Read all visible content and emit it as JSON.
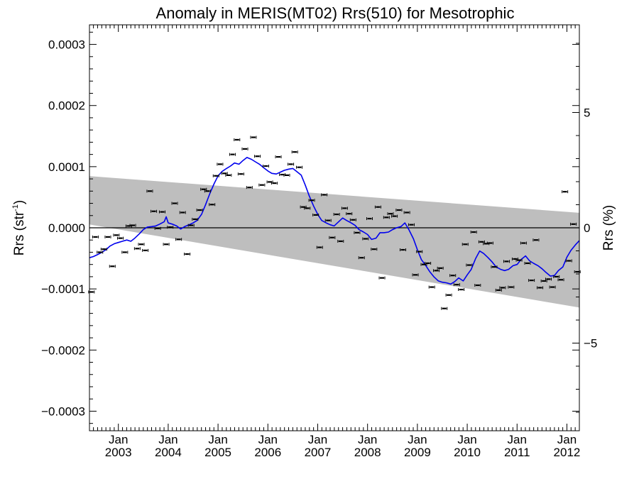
{
  "chart_data": {
    "type": "scatter",
    "title": "Anomaly in MERIS(MT02) Rrs(510) for Mesotrophic",
    "ylabel_main": "Rrs (str",
    "ylabel_sup": "-1",
    "ylabel_close": ")",
    "y2label": "Rrs (%)",
    "xlim": [
      2002.42,
      2012.25
    ],
    "ylim": [
      -0.000332,
      0.000332
    ],
    "y2lim": [
      -8.8,
      8.8
    ],
    "y_ticks": [
      {
        "value": 0.0003,
        "label": "0.0003"
      },
      {
        "value": 0.0002,
        "label": "0.0002"
      },
      {
        "value": 0.0001,
        "label": "0.0001"
      },
      {
        "value": 0.0,
        "label": "0.0000"
      },
      {
        "value": -0.0001,
        "label": "−0.0001"
      },
      {
        "value": -0.0002,
        "label": "−0.0002"
      },
      {
        "value": -0.0003,
        "label": "−0.0003"
      }
    ],
    "y2_ticks": [
      {
        "value": 5,
        "label": "5"
      },
      {
        "value": 0,
        "label": "0"
      },
      {
        "value": -5,
        "label": "−5"
      }
    ],
    "x_ticks": [
      {
        "value": 2003.0,
        "month": "Jan",
        "year": "2003"
      },
      {
        "value": 2004.0,
        "month": "Jan",
        "year": "2004"
      },
      {
        "value": 2005.0,
        "month": "Jan",
        "year": "2005"
      },
      {
        "value": 2006.0,
        "month": "Jan",
        "year": "2006"
      },
      {
        "value": 2007.0,
        "month": "Jan",
        "year": "2007"
      },
      {
        "value": 2008.0,
        "month": "Jan",
        "year": "2008"
      },
      {
        "value": 2009.0,
        "month": "Jan",
        "year": "2009"
      },
      {
        "value": 2010.0,
        "month": "Jan",
        "year": "2010"
      },
      {
        "value": 2011.0,
        "month": "Jan",
        "year": "2011"
      },
      {
        "value": 2012.0,
        "month": "Jan",
        "year": "2012"
      }
    ],
    "shaded_band": {
      "upper": [
        [
          2002.42,
          8.45e-05
        ],
        [
          2012.25,
          2.45e-05
        ]
      ],
      "lower": [
        [
          2002.42,
          5.5e-06
        ],
        [
          2012.25,
          -0.0001305
        ]
      ]
    },
    "zero_line": 0,
    "monthly_points": [
      [
        2002.46,
        -0.000105
      ],
      [
        2002.54,
        -1.5e-05
      ],
      [
        2002.63,
        -4e-05
      ],
      [
        2002.71,
        -3.5e-05
      ],
      [
        2002.79,
        -1.5e-05
      ],
      [
        2002.88,
        -6.3e-05
      ],
      [
        2002.96,
        -1.2e-05
      ],
      [
        2003.04,
        -1.7e-05
      ],
      [
        2003.13,
        -4e-05
      ],
      [
        2003.21,
        3e-06
      ],
      [
        2003.29,
        4e-06
      ],
      [
        2003.38,
        -3.4e-05
      ],
      [
        2003.46,
        -2.7e-05
      ],
      [
        2003.54,
        -3.7e-05
      ],
      [
        2003.63,
        6e-05
      ],
      [
        2003.71,
        2.7e-05
      ],
      [
        2003.79,
        -1e-06
      ],
      [
        2003.88,
        2.6e-05
      ],
      [
        2003.96,
        -2.7e-05
      ],
      [
        2004.04,
        1e-06
      ],
      [
        2004.13,
        4e-05
      ],
      [
        2004.21,
        -1.9e-05
      ],
      [
        2004.29,
        2.5e-05
      ],
      [
        2004.38,
        -4.3e-05
      ],
      [
        2004.46,
        4e-06
      ],
      [
        2004.54,
        1.4e-05
      ],
      [
        2004.63,
        2.9e-05
      ],
      [
        2004.71,
        6.3e-05
      ],
      [
        2004.79,
        6e-05
      ],
      [
        2004.88,
        3.8e-05
      ],
      [
        2004.96,
        8.5e-05
      ],
      [
        2005.04,
        0.000104
      ],
      [
        2005.13,
        8.9e-05
      ],
      [
        2005.21,
        8.6e-05
      ],
      [
        2005.29,
        0.00012
      ],
      [
        2005.38,
        0.000144
      ],
      [
        2005.46,
        8.8e-05
      ],
      [
        2005.54,
        0.000129
      ],
      [
        2005.63,
        6.6e-05
      ],
      [
        2005.71,
        0.000148
      ],
      [
        2005.79,
        0.000117
      ],
      [
        2005.88,
        7e-05
      ],
      [
        2005.96,
        0.000101
      ],
      [
        2006.04,
        7.5e-05
      ],
      [
        2006.13,
        7.3e-05
      ],
      [
        2006.21,
        0.000116
      ],
      [
        2006.29,
        8.7e-05
      ],
      [
        2006.38,
        8.6e-05
      ],
      [
        2006.46,
        0.000104
      ],
      [
        2006.54,
        0.000124
      ],
      [
        2006.63,
        9.9e-05
      ],
      [
        2006.71,
        3.4e-05
      ],
      [
        2006.79,
        3.2e-05
      ],
      [
        2006.88,
        4.5e-05
      ],
      [
        2006.96,
        2.1e-05
      ],
      [
        2007.04,
        -3.2e-05
      ],
      [
        2007.13,
        5.4e-05
      ],
      [
        2007.21,
        1.2e-05
      ],
      [
        2007.29,
        -1.6e-05
      ],
      [
        2007.38,
        2.2e-05
      ],
      [
        2007.46,
        -2.2e-05
      ],
      [
        2007.54,
        3.2e-05
      ],
      [
        2007.63,
        2.3e-05
      ],
      [
        2007.71,
        1.3e-05
      ],
      [
        2007.79,
        -8e-06
      ],
      [
        2007.88,
        -4.9e-05
      ],
      [
        2007.96,
        -1.8e-05
      ],
      [
        2008.04,
        1.5e-05
      ],
      [
        2008.13,
        -3.5e-05
      ],
      [
        2008.21,
        3.4e-05
      ],
      [
        2008.29,
        -8.2e-05
      ],
      [
        2008.38,
        1.7e-05
      ],
      [
        2008.46,
        2.3e-05
      ],
      [
        2008.54,
        1.9e-05
      ],
      [
        2008.63,
        2.9e-05
      ],
      [
        2008.71,
        -3.6e-05
      ],
      [
        2008.79,
        2.5e-05
      ],
      [
        2008.88,
        5e-06
      ],
      [
        2008.96,
        -7.7e-05
      ],
      [
        2009.04,
        -3.9e-05
      ],
      [
        2009.13,
        -6e-05
      ],
      [
        2009.21,
        -5.8e-05
      ],
      [
        2009.29,
        -9.7e-05
      ],
      [
        2009.38,
        -7e-05
      ],
      [
        2009.46,
        -6.6e-05
      ],
      [
        2009.54,
        -0.000132
      ],
      [
        2009.63,
        -0.00011
      ],
      [
        2009.71,
        -7.8e-05
      ],
      [
        2009.79,
        -9.3e-05
      ],
      [
        2009.88,
        -0.000101
      ],
      [
        2009.96,
        -2.7e-05
      ],
      [
        2010.04,
        -6.1e-05
      ],
      [
        2010.13,
        -7e-06
      ],
      [
        2010.21,
        -9.4e-05
      ],
      [
        2010.29,
        -2.3e-05
      ],
      [
        2010.38,
        -2.6e-05
      ],
      [
        2010.46,
        -2.5e-05
      ],
      [
        2010.54,
        -6.4e-05
      ],
      [
        2010.63,
        -0.000102
      ],
      [
        2010.71,
        -9.8e-05
      ],
      [
        2010.79,
        -5.5e-05
      ],
      [
        2010.88,
        -9.7e-05
      ],
      [
        2010.96,
        -5.1e-05
      ],
      [
        2011.04,
        -5.3e-05
      ],
      [
        2011.13,
        -2.5e-05
      ],
      [
        2011.21,
        -5.8e-05
      ],
      [
        2011.29,
        -8.6e-05
      ],
      [
        2011.38,
        -2e-05
      ],
      [
        2011.46,
        -9.8e-05
      ],
      [
        2011.54,
        -8.7e-05
      ],
      [
        2011.63,
        -8.4e-05
      ],
      [
        2011.71,
        -9.7e-05
      ],
      [
        2011.79,
        -8e-05
      ],
      [
        2011.88,
        -8.5e-05
      ],
      [
        2011.96,
        5.9e-05
      ],
      [
        2012.04,
        -5.4e-05
      ],
      [
        2012.13,
        6e-06
      ],
      [
        2012.21,
        -7.2e-05
      ]
    ],
    "running_mean": [
      [
        2002.42,
        -4.9e-05
      ],
      [
        2002.5,
        -4.7e-05
      ],
      [
        2002.58,
        -4.4e-05
      ],
      [
        2002.67,
        -4e-05
      ],
      [
        2002.75,
        -3.6e-05
      ],
      [
        2002.83,
        -3e-05
      ],
      [
        2002.92,
        -2.6e-05
      ],
      [
        2003.0,
        -2.4e-05
      ],
      [
        2003.08,
        -2.2e-05
      ],
      [
        2003.17,
        -2e-05
      ],
      [
        2003.25,
        -2.2e-05
      ],
      [
        2003.33,
        -1.7e-05
      ],
      [
        2003.42,
        -1e-05
      ],
      [
        2003.5,
        -3e-06
      ],
      [
        2003.58,
        1e-06
      ],
      [
        2003.67,
        2e-06
      ],
      [
        2003.75,
        3e-06
      ],
      [
        2003.83,
        6e-06
      ],
      [
        2003.92,
        1e-05
      ],
      [
        2003.96,
        1.8e-05
      ],
      [
        2004.0,
        8e-06
      ],
      [
        2004.08,
        6e-06
      ],
      [
        2004.17,
        3e-06
      ],
      [
        2004.25,
        -2e-06
      ],
      [
        2004.33,
        2e-06
      ],
      [
        2004.42,
        5e-06
      ],
      [
        2004.5,
        8e-06
      ],
      [
        2004.58,
        1.2e-05
      ],
      [
        2004.67,
        2.2e-05
      ],
      [
        2004.75,
        3.8e-05
      ],
      [
        2004.83,
        5.5e-05
      ],
      [
        2004.92,
        7.2e-05
      ],
      [
        2005.0,
        8.5e-05
      ],
      [
        2005.08,
        9.2e-05
      ],
      [
        2005.17,
        9.7e-05
      ],
      [
        2005.25,
        0.000101
      ],
      [
        2005.33,
        0.000106
      ],
      [
        2005.42,
        0.000104
      ],
      [
        2005.5,
        0.00011
      ],
      [
        2005.58,
        0.000115
      ],
      [
        2005.67,
        0.000112
      ],
      [
        2005.75,
        0.000108
      ],
      [
        2005.83,
        0.000104
      ],
      [
        2005.92,
        9.8e-05
      ],
      [
        2006.0,
        9.3e-05
      ],
      [
        2006.08,
        8.9e-05
      ],
      [
        2006.17,
        8.8e-05
      ],
      [
        2006.25,
        9.1e-05
      ],
      [
        2006.33,
        9.4e-05
      ],
      [
        2006.42,
        9.6e-05
      ],
      [
        2006.5,
        9.7e-05
      ],
      [
        2006.58,
        9.2e-05
      ],
      [
        2006.67,
        8.6e-05
      ],
      [
        2006.75,
        7e-05
      ],
      [
        2006.83,
        5.2e-05
      ],
      [
        2006.92,
        3.5e-05
      ],
      [
        2007.0,
        2.2e-05
      ],
      [
        2007.08,
        1.2e-05
      ],
      [
        2007.17,
        8e-06
      ],
      [
        2007.25,
        5e-06
      ],
      [
        2007.33,
        3e-06
      ],
      [
        2007.42,
        1e-05
      ],
      [
        2007.5,
        1.6e-05
      ],
      [
        2007.58,
        1.2e-05
      ],
      [
        2007.67,
        8e-06
      ],
      [
        2007.75,
        4e-06
      ],
      [
        2007.83,
        -3e-06
      ],
      [
        2007.92,
        -7e-06
      ],
      [
        2008.0,
        -1.1e-05
      ],
      [
        2008.08,
        -1.9e-05
      ],
      [
        2008.17,
        -1.7e-05
      ],
      [
        2008.25,
        -8e-06
      ],
      [
        2008.33,
        -8e-06
      ],
      [
        2008.42,
        -7e-06
      ],
      [
        2008.5,
        -3e-06
      ],
      [
        2008.58,
        0.0
      ],
      [
        2008.67,
        2e-06
      ],
      [
        2008.75,
        8e-06
      ],
      [
        2008.83,
        -3e-06
      ],
      [
        2008.92,
        -1.8e-05
      ],
      [
        2009.0,
        -3.6e-05
      ],
      [
        2009.08,
        -5.2e-05
      ],
      [
        2009.17,
        -6.2e-05
      ],
      [
        2009.25,
        -7.2e-05
      ],
      [
        2009.33,
        -8e-05
      ],
      [
        2009.42,
        -8.7e-05
      ],
      [
        2009.5,
        -8.9e-05
      ],
      [
        2009.58,
        -9e-05
      ],
      [
        2009.67,
        -9.2e-05
      ],
      [
        2009.75,
        -8.8e-05
      ],
      [
        2009.83,
        -8.2e-05
      ],
      [
        2009.92,
        -8.7e-05
      ],
      [
        2010.0,
        -7.7e-05
      ],
      [
        2010.08,
        -6.8e-05
      ],
      [
        2010.17,
        -5e-05
      ],
      [
        2010.25,
        -3.8e-05
      ],
      [
        2010.33,
        -4.2e-05
      ],
      [
        2010.42,
        -4.9e-05
      ],
      [
        2010.5,
        -5.6e-05
      ],
      [
        2010.58,
        -6.4e-05
      ],
      [
        2010.67,
        -6.8e-05
      ],
      [
        2010.75,
        -7e-05
      ],
      [
        2010.83,
        -6.8e-05
      ],
      [
        2010.92,
        -6.2e-05
      ],
      [
        2011.0,
        -6e-05
      ],
      [
        2011.08,
        -5.2e-05
      ],
      [
        2011.17,
        -4.6e-05
      ],
      [
        2011.25,
        -5.4e-05
      ],
      [
        2011.33,
        -5.8e-05
      ],
      [
        2011.42,
        -6.2e-05
      ],
      [
        2011.5,
        -6.7e-05
      ],
      [
        2011.58,
        -7.3e-05
      ],
      [
        2011.67,
        -7.9e-05
      ],
      [
        2011.75,
        -7.8e-05
      ],
      [
        2011.83,
        -7e-05
      ],
      [
        2011.92,
        -6.4e-05
      ],
      [
        2012.0,
        -4.8e-05
      ],
      [
        2012.08,
        -3.7e-05
      ],
      [
        2012.17,
        -2.8e-05
      ],
      [
        2012.25,
        -2.1e-05
      ]
    ],
    "colors": {
      "band": "#bebebe",
      "mean_line": "#0000ee",
      "points": "#000000",
      "axis": "#000000"
    }
  }
}
